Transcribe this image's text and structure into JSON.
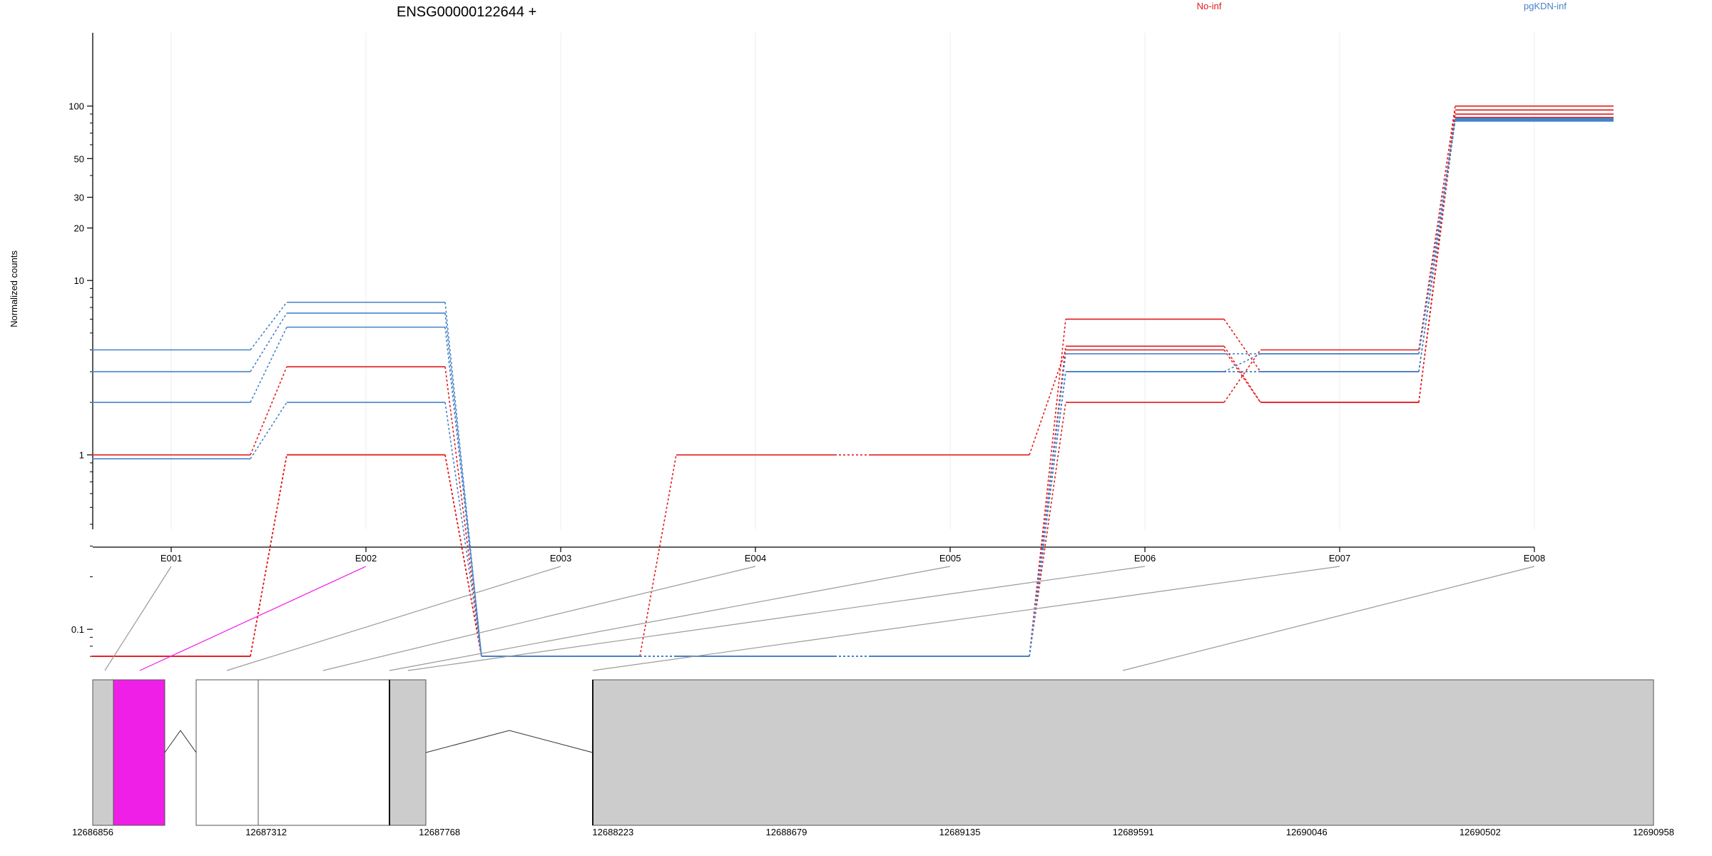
{
  "chart_data": {
    "type": "line",
    "title": "ENSG00000122644 +",
    "ylabel": "Normalized counts",
    "yscale": "log",
    "ylim": [
      0.07,
      140
    ],
    "yticks_major": [
      0.1,
      1,
      10,
      20,
      30,
      50,
      100
    ],
    "ytick_labels": [
      "0.1",
      "1",
      "10",
      "20",
      "30",
      "50",
      "100"
    ],
    "categories": [
      "E001",
      "E002",
      "E003",
      "E004",
      "E005",
      "E006",
      "E007",
      "E008"
    ],
    "legend": [
      {
        "name": "No-inf",
        "color": "#e31a1c"
      },
      {
        "name": "pgKDN-inf",
        "color": "#4682c8"
      }
    ],
    "series": [
      {
        "group": "No-inf",
        "values": [
          0.07,
          1.0,
          0.07,
          0.07,
          0.07,
          2.0,
          4.0,
          100
        ]
      },
      {
        "group": "No-inf",
        "values": [
          1.0,
          3.2,
          0.07,
          1.0,
          1.0,
          4.0,
          2.0,
          95
        ]
      },
      {
        "group": "No-inf",
        "values": [
          0.07,
          1.0,
          0.07,
          0.07,
          0.07,
          6.0,
          3.0,
          90
        ]
      },
      {
        "group": "No-inf",
        "values": [
          0.07,
          1.0,
          0.07,
          0.07,
          0.07,
          4.2,
          2.0,
          86
        ]
      },
      {
        "group": "pgKDN-inf",
        "values": [
          4.0,
          7.5,
          0.07,
          0.07,
          0.07,
          3.8,
          3.8,
          85
        ]
      },
      {
        "group": "pgKDN-inf",
        "values": [
          3.0,
          6.5,
          0.07,
          0.07,
          0.07,
          3.0,
          3.0,
          84
        ]
      },
      {
        "group": "pgKDN-inf",
        "values": [
          2.0,
          5.4,
          0.07,
          0.07,
          0.07,
          3.0,
          3.8,
          83
        ]
      },
      {
        "group": "pgKDN-inf",
        "values": [
          0.95,
          2.0,
          0.07,
          0.07,
          0.07,
          3.0,
          3.0,
          82
        ]
      }
    ],
    "gene_model": {
      "coordinates": [
        "12686856",
        "12687312",
        "12687768",
        "12688223",
        "12688679",
        "12689135",
        "12689591",
        "12690046",
        "12690502",
        "12690958"
      ],
      "highlight_color": "#f01fe8"
    }
  }
}
